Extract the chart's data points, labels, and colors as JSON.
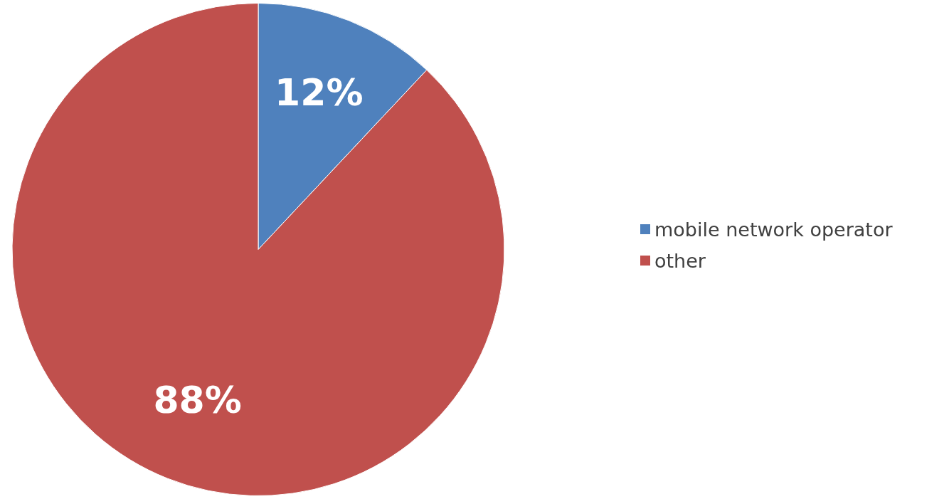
{
  "chart_data": {
    "type": "pie",
    "categories": [
      "mobile network operator",
      "other"
    ],
    "values": [
      12,
      88
    ],
    "colors": [
      "#4f81bd",
      "#c0504d"
    ],
    "value_labels": [
      "12%",
      "88%"
    ],
    "legend": "right"
  }
}
